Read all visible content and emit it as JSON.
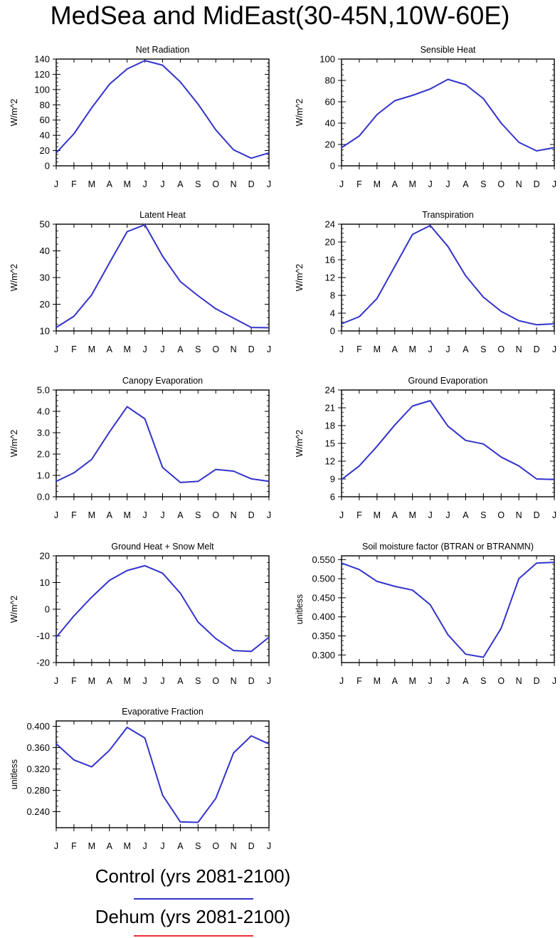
{
  "figure_title": "MedSea and MidEast(30-45N,10W-60E)",
  "chart_data": [
    {
      "type": "line",
      "title": "Net Radiation",
      "ylabel": "W/m^2",
      "categories": [
        "J",
        "F",
        "M",
        "A",
        "M",
        "J",
        "J",
        "A",
        "S",
        "O",
        "N",
        "D",
        "J"
      ],
      "ylim": [
        0,
        140
      ],
      "yticks": [
        "0",
        "20",
        "40",
        "60",
        "80",
        "100",
        "120",
        "140"
      ],
      "series": [
        {
          "name": "Control (yrs 2081-2100)",
          "values": [
            17,
            42,
            76,
            107,
            127,
            138,
            132,
            110,
            81,
            47,
            21,
            10,
            17
          ]
        }
      ]
    },
    {
      "type": "line",
      "title": "Sensible Heat",
      "ylabel": "W/m^2",
      "categories": [
        "J",
        "F",
        "M",
        "A",
        "M",
        "J",
        "J",
        "A",
        "S",
        "O",
        "N",
        "D",
        "J"
      ],
      "ylim": [
        0,
        100
      ],
      "yticks": [
        "0",
        "20",
        "40",
        "60",
        "80",
        "100"
      ],
      "series": [
        {
          "name": "Control (yrs 2081-2100)",
          "values": [
            17,
            28,
            48,
            61,
            66,
            72,
            81,
            76,
            63,
            40,
            22,
            14,
            17
          ]
        }
      ]
    },
    {
      "type": "line",
      "title": "Latent Heat",
      "ylabel": "W/m^2",
      "categories": [
        "J",
        "F",
        "M",
        "A",
        "M",
        "J",
        "J",
        "A",
        "S",
        "O",
        "N",
        "D",
        "J"
      ],
      "ylim": [
        10,
        50
      ],
      "yticks": [
        "10",
        "20",
        "30",
        "40",
        "50"
      ],
      "series": [
        {
          "name": "Control (yrs 2081-2100)",
          "values": [
            11.3,
            15.5,
            23.5,
            35.5,
            47.2,
            49.8,
            38,
            28.5,
            23.2,
            18.3,
            14.8,
            11.3,
            11.2
          ]
        }
      ]
    },
    {
      "type": "line",
      "title": "Transpiration",
      "ylabel": "W/m^2",
      "categories": [
        "J",
        "F",
        "M",
        "A",
        "M",
        "J",
        "J",
        "A",
        "S",
        "O",
        "N",
        "D",
        "J"
      ],
      "ylim": [
        0,
        24
      ],
      "yticks": [
        "0",
        "4",
        "8",
        "12",
        "16",
        "20",
        "24"
      ],
      "series": [
        {
          "name": "Control (yrs 2081-2100)",
          "values": [
            1.6,
            3.2,
            7.3,
            14.5,
            21.7,
            23.7,
            19,
            12.4,
            7.6,
            4.4,
            2.3,
            1.4,
            1.6
          ]
        }
      ]
    },
    {
      "type": "line",
      "title": "Canopy Evaporation",
      "ylabel": "W/m^2",
      "categories": [
        "J",
        "F",
        "M",
        "A",
        "M",
        "J",
        "J",
        "A",
        "S",
        "O",
        "N",
        "D",
        "J"
      ],
      "ylim": [
        0,
        5
      ],
      "yticks": [
        "0.0",
        "1.0",
        "2.0",
        "3.0",
        "4.0",
        "5.0"
      ],
      "series": [
        {
          "name": "Control (yrs 2081-2100)",
          "values": [
            0.72,
            1.12,
            1.75,
            3.03,
            4.22,
            3.65,
            1.37,
            0.67,
            0.72,
            1.28,
            1.2,
            0.84,
            0.72
          ]
        }
      ]
    },
    {
      "type": "line",
      "title": "Ground Evaporation",
      "ylabel": "W/m^2",
      "categories": [
        "J",
        "F",
        "M",
        "A",
        "M",
        "J",
        "J",
        "A",
        "S",
        "O",
        "N",
        "D",
        "J"
      ],
      "ylim": [
        6,
        24
      ],
      "yticks": [
        "6",
        "9",
        "12",
        "15",
        "18",
        "21",
        "24"
      ],
      "series": [
        {
          "name": "Control (yrs 2081-2100)",
          "values": [
            8.9,
            11.2,
            14.5,
            18.1,
            21.3,
            22.2,
            17.9,
            15.5,
            14.9,
            12.7,
            11.2,
            9.0,
            8.9
          ]
        }
      ]
    },
    {
      "type": "line",
      "title": "Ground Heat + Snow Melt",
      "ylabel": "W/m^2",
      "categories": [
        "J",
        "F",
        "M",
        "A",
        "M",
        "J",
        "J",
        "A",
        "S",
        "O",
        "N",
        "D",
        "J"
      ],
      "ylim": [
        -20,
        20
      ],
      "yticks": [
        "-20",
        "-10",
        "0",
        "10",
        "20"
      ],
      "series": [
        {
          "name": "Control (yrs 2081-2100)",
          "values": [
            -10.5,
            -2.5,
            4.5,
            10.8,
            14.5,
            16.3,
            13.5,
            6,
            -4.8,
            -11,
            -15.5,
            -15.8,
            -10.5
          ]
        }
      ]
    },
    {
      "type": "line",
      "title": "Soil moisture factor (BTRAN or BTRANMN)",
      "ylabel": "unitless",
      "categories": [
        "J",
        "F",
        "M",
        "A",
        "M",
        "J",
        "J",
        "A",
        "S",
        "O",
        "N",
        "D",
        "J"
      ],
      "ylim": [
        0.28,
        0.56
      ],
      "yticks": [
        "0.300",
        "0.350",
        "0.400",
        "0.450",
        "0.500",
        "0.550"
      ],
      "series": [
        {
          "name": "Control (yrs 2081-2100)",
          "values": [
            0.541,
            0.524,
            0.493,
            0.48,
            0.47,
            0.432,
            0.353,
            0.302,
            0.294,
            0.37,
            0.5,
            0.541,
            0.543
          ]
        }
      ]
    },
    {
      "type": "line",
      "title": "Evaporative Fraction",
      "ylabel": "unitless",
      "categories": [
        "J",
        "F",
        "M",
        "A",
        "M",
        "J",
        "J",
        "A",
        "S",
        "O",
        "N",
        "D",
        "J"
      ],
      "ylim": [
        0.21,
        0.41
      ],
      "yticks": [
        "0.240",
        "0.280",
        "0.320",
        "0.360",
        "0.400"
      ],
      "series": [
        {
          "name": "Control (yrs 2081-2100)",
          "values": [
            0.367,
            0.337,
            0.324,
            0.355,
            0.398,
            0.378,
            0.271,
            0.221,
            0.22,
            0.265,
            0.35,
            0.382,
            0.367
          ]
        }
      ]
    }
  ],
  "legend": [
    {
      "label": "Control (yrs 2081-2100)",
      "color": "#3333cc"
    },
    {
      "label": "Dehum (yrs 2081-2100)",
      "color": "#ee3333"
    }
  ]
}
